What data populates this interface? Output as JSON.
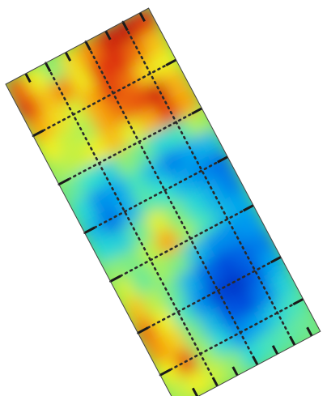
{
  "heatmap": {
    "colormap": [
      "#0010a0",
      "#0050e0",
      "#00a0f0",
      "#30e0d0",
      "#a0f060",
      "#f0f020",
      "#f8a010",
      "#e03010",
      "#900000"
    ],
    "grid_rows": 16,
    "grid_cols": 8,
    "values": [
      [
        0.82,
        0.62,
        0.48,
        0.66,
        0.78,
        0.9,
        0.92,
        0.88
      ],
      [
        0.86,
        0.7,
        0.78,
        0.64,
        0.86,
        0.88,
        0.8,
        0.7
      ],
      [
        0.74,
        0.66,
        0.58,
        0.74,
        0.86,
        0.8,
        0.66,
        0.62
      ],
      [
        0.62,
        0.56,
        0.52,
        0.74,
        0.8,
        0.84,
        0.9,
        0.72
      ],
      [
        0.52,
        0.56,
        0.62,
        0.7,
        0.6,
        0.72,
        0.86,
        0.74
      ],
      [
        0.44,
        0.38,
        0.34,
        0.48,
        0.44,
        0.36,
        0.4,
        0.52
      ],
      [
        0.36,
        0.22,
        0.26,
        0.4,
        0.3,
        0.2,
        0.26,
        0.3
      ],
      [
        0.3,
        0.18,
        0.28,
        0.42,
        0.38,
        0.28,
        0.22,
        0.18
      ],
      [
        0.36,
        0.34,
        0.44,
        0.6,
        0.46,
        0.36,
        0.28,
        0.2
      ],
      [
        0.48,
        0.46,
        0.54,
        0.74,
        0.5,
        0.4,
        0.3,
        0.26
      ],
      [
        0.58,
        0.44,
        0.5,
        0.46,
        0.3,
        0.22,
        0.22,
        0.24
      ],
      [
        0.7,
        0.54,
        0.44,
        0.28,
        0.16,
        0.12,
        0.16,
        0.2
      ],
      [
        0.8,
        0.62,
        0.4,
        0.22,
        0.1,
        0.08,
        0.14,
        0.26
      ],
      [
        0.76,
        0.68,
        0.46,
        0.3,
        0.14,
        0.12,
        0.2,
        0.34
      ],
      [
        0.62,
        0.84,
        0.5,
        0.36,
        0.22,
        0.26,
        0.34,
        0.4
      ],
      [
        0.54,
        0.62,
        0.56,
        0.48,
        0.36,
        0.4,
        0.42,
        0.44
      ]
    ],
    "dotted_grid_color": "#2a2a2a",
    "tick_color": "#1a1a1a",
    "border_color": "#444444"
  }
}
